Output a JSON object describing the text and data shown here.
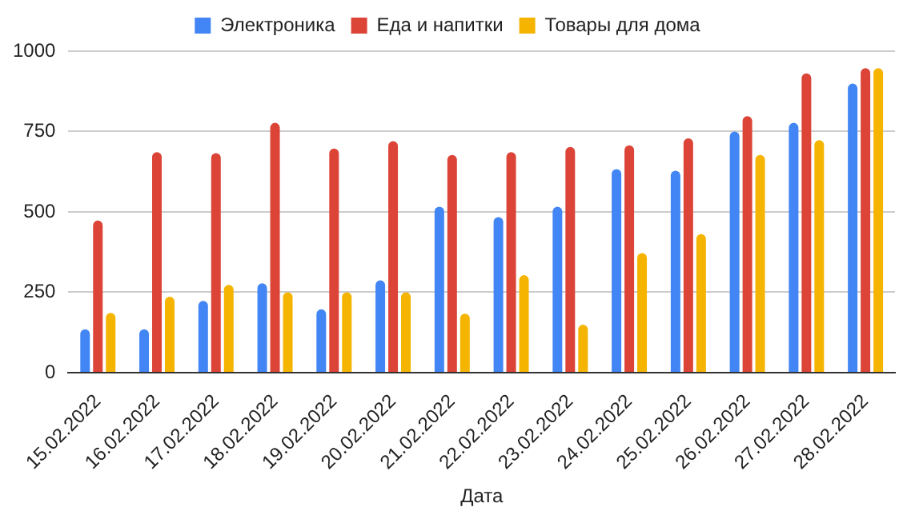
{
  "chart_data": {
    "type": "bar",
    "xlabel": "Дата",
    "categories": [
      "15.02.2022",
      "16.02.2022",
      "17.02.2022",
      "18.02.2022",
      "19.02.2022",
      "20.02.2022",
      "21.02.2022",
      "22.02.2022",
      "23.02.2022",
      "24.02.2022",
      "25.02.2022",
      "26.02.2022",
      "27.02.2022",
      "28.02.2022"
    ],
    "series": [
      {
        "name": "Электроника",
        "color": "#4285f4",
        "values": [
          135,
          135,
          223,
          278,
          197,
          287,
          516,
          484,
          516,
          633,
          628,
          750,
          777,
          899
        ]
      },
      {
        "name": "Еда и напитки",
        "color": "#db4437",
        "values": [
          473,
          686,
          683,
          777,
          697,
          720,
          677,
          686,
          702,
          707,
          729,
          798,
          931,
          947
        ]
      },
      {
        "name": "Товары для дома",
        "color": "#f4b400",
        "values": [
          186,
          236,
          273,
          250,
          250,
          250,
          183,
          303,
          149,
          372,
          431,
          677,
          723,
          947
        ]
      }
    ],
    "ylim": [
      0,
      1000
    ],
    "yticks": [
      0,
      250,
      500,
      750,
      1000
    ],
    "grid": "y",
    "legend": "top"
  }
}
